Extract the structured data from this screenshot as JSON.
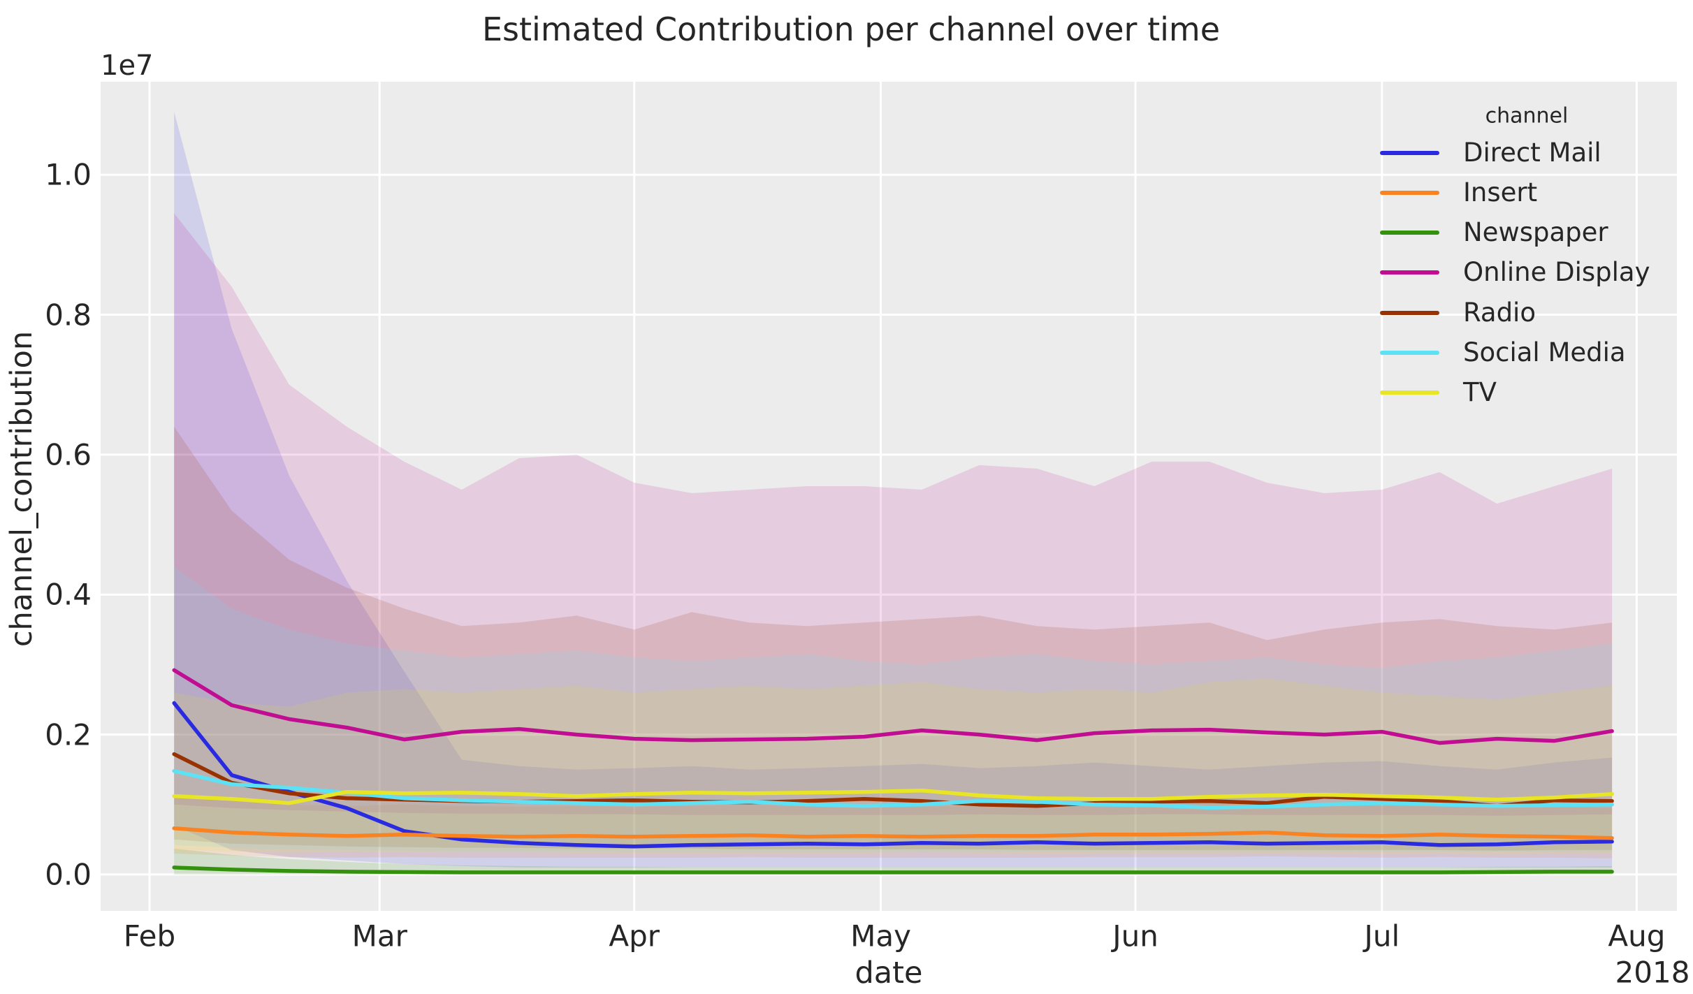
{
  "chart": {
    "title": "Estimated Contribution per channel over time",
    "background_color": "#ffffff",
    "plot_background_color": "#ececec",
    "grid_color": "#ffffff",
    "text_color": "#262626"
  },
  "axes": {
    "x_label": "date",
    "y_label": "channel_contribution",
    "offset_text": "1e7",
    "year_label": "2018"
  },
  "legend": {
    "title": "channel",
    "entries": [
      "Direct Mail",
      "Insert",
      "Newspaper",
      "Online Display",
      "Radio",
      "Social Media",
      "TV"
    ]
  },
  "chart_data": {
    "type": "line",
    "title": "Estimated Contribution per channel over time",
    "xlabel": "date",
    "ylabel": "channel_contribution",
    "grid": true,
    "legend_position": "upper right",
    "y_scale_factor_label": "1e7",
    "x_ticks": {
      "days_from_feb1_2018": [
        0,
        28,
        59,
        89,
        120,
        150,
        181
      ],
      "labels": [
        "Feb",
        "Mar",
        "Apr",
        "May",
        "Jun",
        "Jul",
        "Aug"
      ],
      "year_label": "2018"
    },
    "y_ticks": {
      "values": [
        0,
        2000000,
        4000000,
        6000000,
        8000000,
        10000000
      ],
      "labels": [
        "0.0",
        "0.2",
        "0.4",
        "0.6",
        "0.8",
        "1.0"
      ]
    },
    "xlim_days": [
      -5.95,
      185.9
    ],
    "ylim": [
      -520000,
      11330000
    ],
    "x_days_from_feb1_2018": [
      3,
      10,
      17,
      24,
      31,
      38,
      45,
      52,
      59,
      66,
      73,
      80,
      87,
      94,
      101,
      108,
      115,
      122,
      129,
      136,
      143,
      150,
      157,
      164,
      171,
      178
    ],
    "band_opacity": 0.14,
    "series": [
      {
        "name": "Direct Mail",
        "color": "#2a2ae0",
        "values": [
          2450000,
          1420000,
          1180000,
          950000,
          620000,
          500000,
          450000,
          420000,
          400000,
          420000,
          430000,
          440000,
          430000,
          450000,
          440000,
          460000,
          440000,
          450000,
          460000,
          440000,
          450000,
          460000,
          420000,
          430000,
          460000,
          470000
        ],
        "ci_upper": [
          10900000,
          7800000,
          5700000,
          4200000,
          2900000,
          1640000,
          1550000,
          1500000,
          1520000,
          1550000,
          1500000,
          1520000,
          1550000,
          1580000,
          1520000,
          1550000,
          1600000,
          1550000,
          1500000,
          1550000,
          1600000,
          1620000,
          1550000,
          1500000,
          1600000,
          1670000
        ],
        "ci_lower": [
          700000,
          350000,
          250000,
          200000,
          150000,
          120000,
          100000,
          100000,
          100000,
          100000,
          100000,
          100000,
          100000,
          100000,
          100000,
          100000,
          100000,
          100000,
          100000,
          100000,
          100000,
          100000,
          100000,
          100000,
          100000,
          100000
        ]
      },
      {
        "name": "Insert",
        "color": "#f98321",
        "values": [
          660000,
          600000,
          570000,
          550000,
          570000,
          550000,
          540000,
          550000,
          540000,
          550000,
          560000,
          540000,
          550000,
          540000,
          550000,
          550000,
          570000,
          570000,
          580000,
          600000,
          560000,
          550000,
          570000,
          550000,
          540000,
          520000
        ],
        "ci_upper": [
          1150000,
          1050000,
          1000000,
          980000,
          1000000,
          980000,
          970000,
          980000,
          970000,
          980000,
          1000000,
          970000,
          980000,
          970000,
          980000,
          980000,
          1000000,
          1000000,
          1020000,
          1050000,
          1000000,
          980000,
          1000000,
          980000,
          970000,
          950000
        ],
        "ci_lower": [
          300000,
          270000,
          250000,
          240000,
          250000,
          240000,
          240000,
          240000,
          240000,
          240000,
          250000,
          240000,
          240000,
          240000,
          240000,
          240000,
          250000,
          250000,
          250000,
          260000,
          250000,
          240000,
          250000,
          240000,
          240000,
          230000
        ]
      },
      {
        "name": "Newspaper",
        "color": "#33910d",
        "values": [
          100000,
          70000,
          50000,
          40000,
          35000,
          30000,
          30000,
          30000,
          30000,
          30000,
          30000,
          30000,
          30000,
          30000,
          30000,
          30000,
          30000,
          30000,
          30000,
          30000,
          30000,
          30000,
          30000,
          35000,
          40000,
          40000
        ],
        "ci_upper": [
          370000,
          280000,
          220000,
          180000,
          150000,
          130000,
          120000,
          110000,
          110000,
          100000,
          100000,
          100000,
          100000,
          100000,
          100000,
          100000,
          100000,
          100000,
          100000,
          100000,
          100000,
          100000,
          100000,
          110000,
          110000,
          120000
        ],
        "ci_lower": [
          0,
          0,
          0,
          0,
          0,
          0,
          0,
          0,
          0,
          0,
          0,
          0,
          0,
          0,
          0,
          0,
          0,
          0,
          0,
          0,
          0,
          0,
          0,
          0,
          0,
          0
        ]
      },
      {
        "name": "Online Display",
        "color": "#c00d92",
        "values": [
          2920000,
          2420000,
          2220000,
          2100000,
          1930000,
          2040000,
          2080000,
          2000000,
          1940000,
          1920000,
          1930000,
          1940000,
          1970000,
          2060000,
          2000000,
          1920000,
          2020000,
          2060000,
          2070000,
          2030000,
          2000000,
          2040000,
          1880000,
          1940000,
          1910000,
          2050000
        ],
        "ci_upper": [
          9450000,
          8400000,
          7000000,
          6400000,
          5900000,
          5500000,
          5950000,
          6000000,
          5600000,
          5450000,
          5500000,
          5550000,
          5550000,
          5500000,
          5850000,
          5800000,
          5550000,
          5900000,
          5900000,
          5600000,
          5450000,
          5500000,
          5750000,
          5300000,
          5550000,
          5800000
        ],
        "ci_lower": [
          1000000,
          950000,
          920000,
          900000,
          880000,
          870000,
          870000,
          860000,
          860000,
          850000,
          850000,
          850000,
          850000,
          850000,
          860000,
          850000,
          850000,
          860000,
          860000,
          850000,
          850000,
          850000,
          850000,
          840000,
          850000,
          860000
        ]
      },
      {
        "name": "Radio",
        "color": "#983203",
        "values": [
          1720000,
          1310000,
          1160000,
          1090000,
          1070000,
          1050000,
          1040000,
          1050000,
          1060000,
          1040000,
          1030000,
          1050000,
          1080000,
          1050000,
          1000000,
          980000,
          1020000,
          1040000,
          1050000,
          1020000,
          1110000,
          1080000,
          1050000,
          980000,
          1060000,
          1050000
        ],
        "ci_upper": [
          6400000,
          5200000,
          4500000,
          4100000,
          3800000,
          3550000,
          3600000,
          3700000,
          3500000,
          3750000,
          3600000,
          3550000,
          3600000,
          3650000,
          3700000,
          3550000,
          3500000,
          3550000,
          3600000,
          3350000,
          3500000,
          3600000,
          3650000,
          3550000,
          3500000,
          3600000
        ],
        "ci_lower": [
          500000,
          440000,
          420000,
          400000,
          390000,
          380000,
          380000,
          370000,
          370000,
          370000,
          360000,
          360000,
          360000,
          360000,
          360000,
          350000,
          350000,
          350000,
          350000,
          350000,
          350000,
          350000,
          350000,
          340000,
          350000,
          350000
        ]
      },
      {
        "name": "Social Media",
        "color": "#5ce1f5",
        "values": [
          1480000,
          1290000,
          1240000,
          1170000,
          1090000,
          1060000,
          1040000,
          1020000,
          1000000,
          1020000,
          1040000,
          1000000,
          980000,
          1000000,
          1050000,
          1040000,
          1000000,
          990000,
          955000,
          970000,
          1000000,
          1020000,
          1000000,
          980000,
          990000,
          1000000
        ],
        "ci_upper": [
          4400000,
          3800000,
          3500000,
          3300000,
          3200000,
          3100000,
          3150000,
          3200000,
          3100000,
          3050000,
          3100000,
          3150000,
          3050000,
          3000000,
          3100000,
          3150000,
          3050000,
          3000000,
          3050000,
          3100000,
          3000000,
          2950000,
          3050000,
          3100000,
          3200000,
          3300000
        ],
        "ci_lower": [
          420000,
          380000,
          360000,
          350000,
          340000,
          330000,
          330000,
          330000,
          320000,
          320000,
          320000,
          320000,
          320000,
          320000,
          320000,
          320000,
          320000,
          320000,
          320000,
          320000,
          320000,
          320000,
          320000,
          320000,
          320000,
          320000
        ]
      },
      {
        "name": "TV",
        "color": "#e8e426",
        "values": [
          1120000,
          1080000,
          1020000,
          1180000,
          1160000,
          1170000,
          1150000,
          1120000,
          1150000,
          1170000,
          1160000,
          1170000,
          1180000,
          1200000,
          1130000,
          1090000,
          1080000,
          1080000,
          1110000,
          1130000,
          1140000,
          1120000,
          1100000,
          1070000,
          1100000,
          1150000
        ],
        "ci_upper": [
          2600000,
          2450000,
          2400000,
          2600000,
          2650000,
          2600000,
          2650000,
          2700000,
          2600000,
          2650000,
          2700000,
          2650000,
          2700000,
          2750000,
          2650000,
          2600000,
          2650000,
          2600000,
          2750000,
          2800000,
          2700000,
          2600000,
          2550000,
          2500000,
          2600000,
          2700000
        ],
        "ci_lower": [
          350000,
          330000,
          310000,
          330000,
          320000,
          320000,
          320000,
          310000,
          310000,
          310000,
          310000,
          310000,
          310000,
          320000,
          310000,
          300000,
          300000,
          300000,
          310000,
          310000,
          310000,
          300000,
          300000,
          290000,
          300000,
          310000
        ]
      }
    ]
  }
}
